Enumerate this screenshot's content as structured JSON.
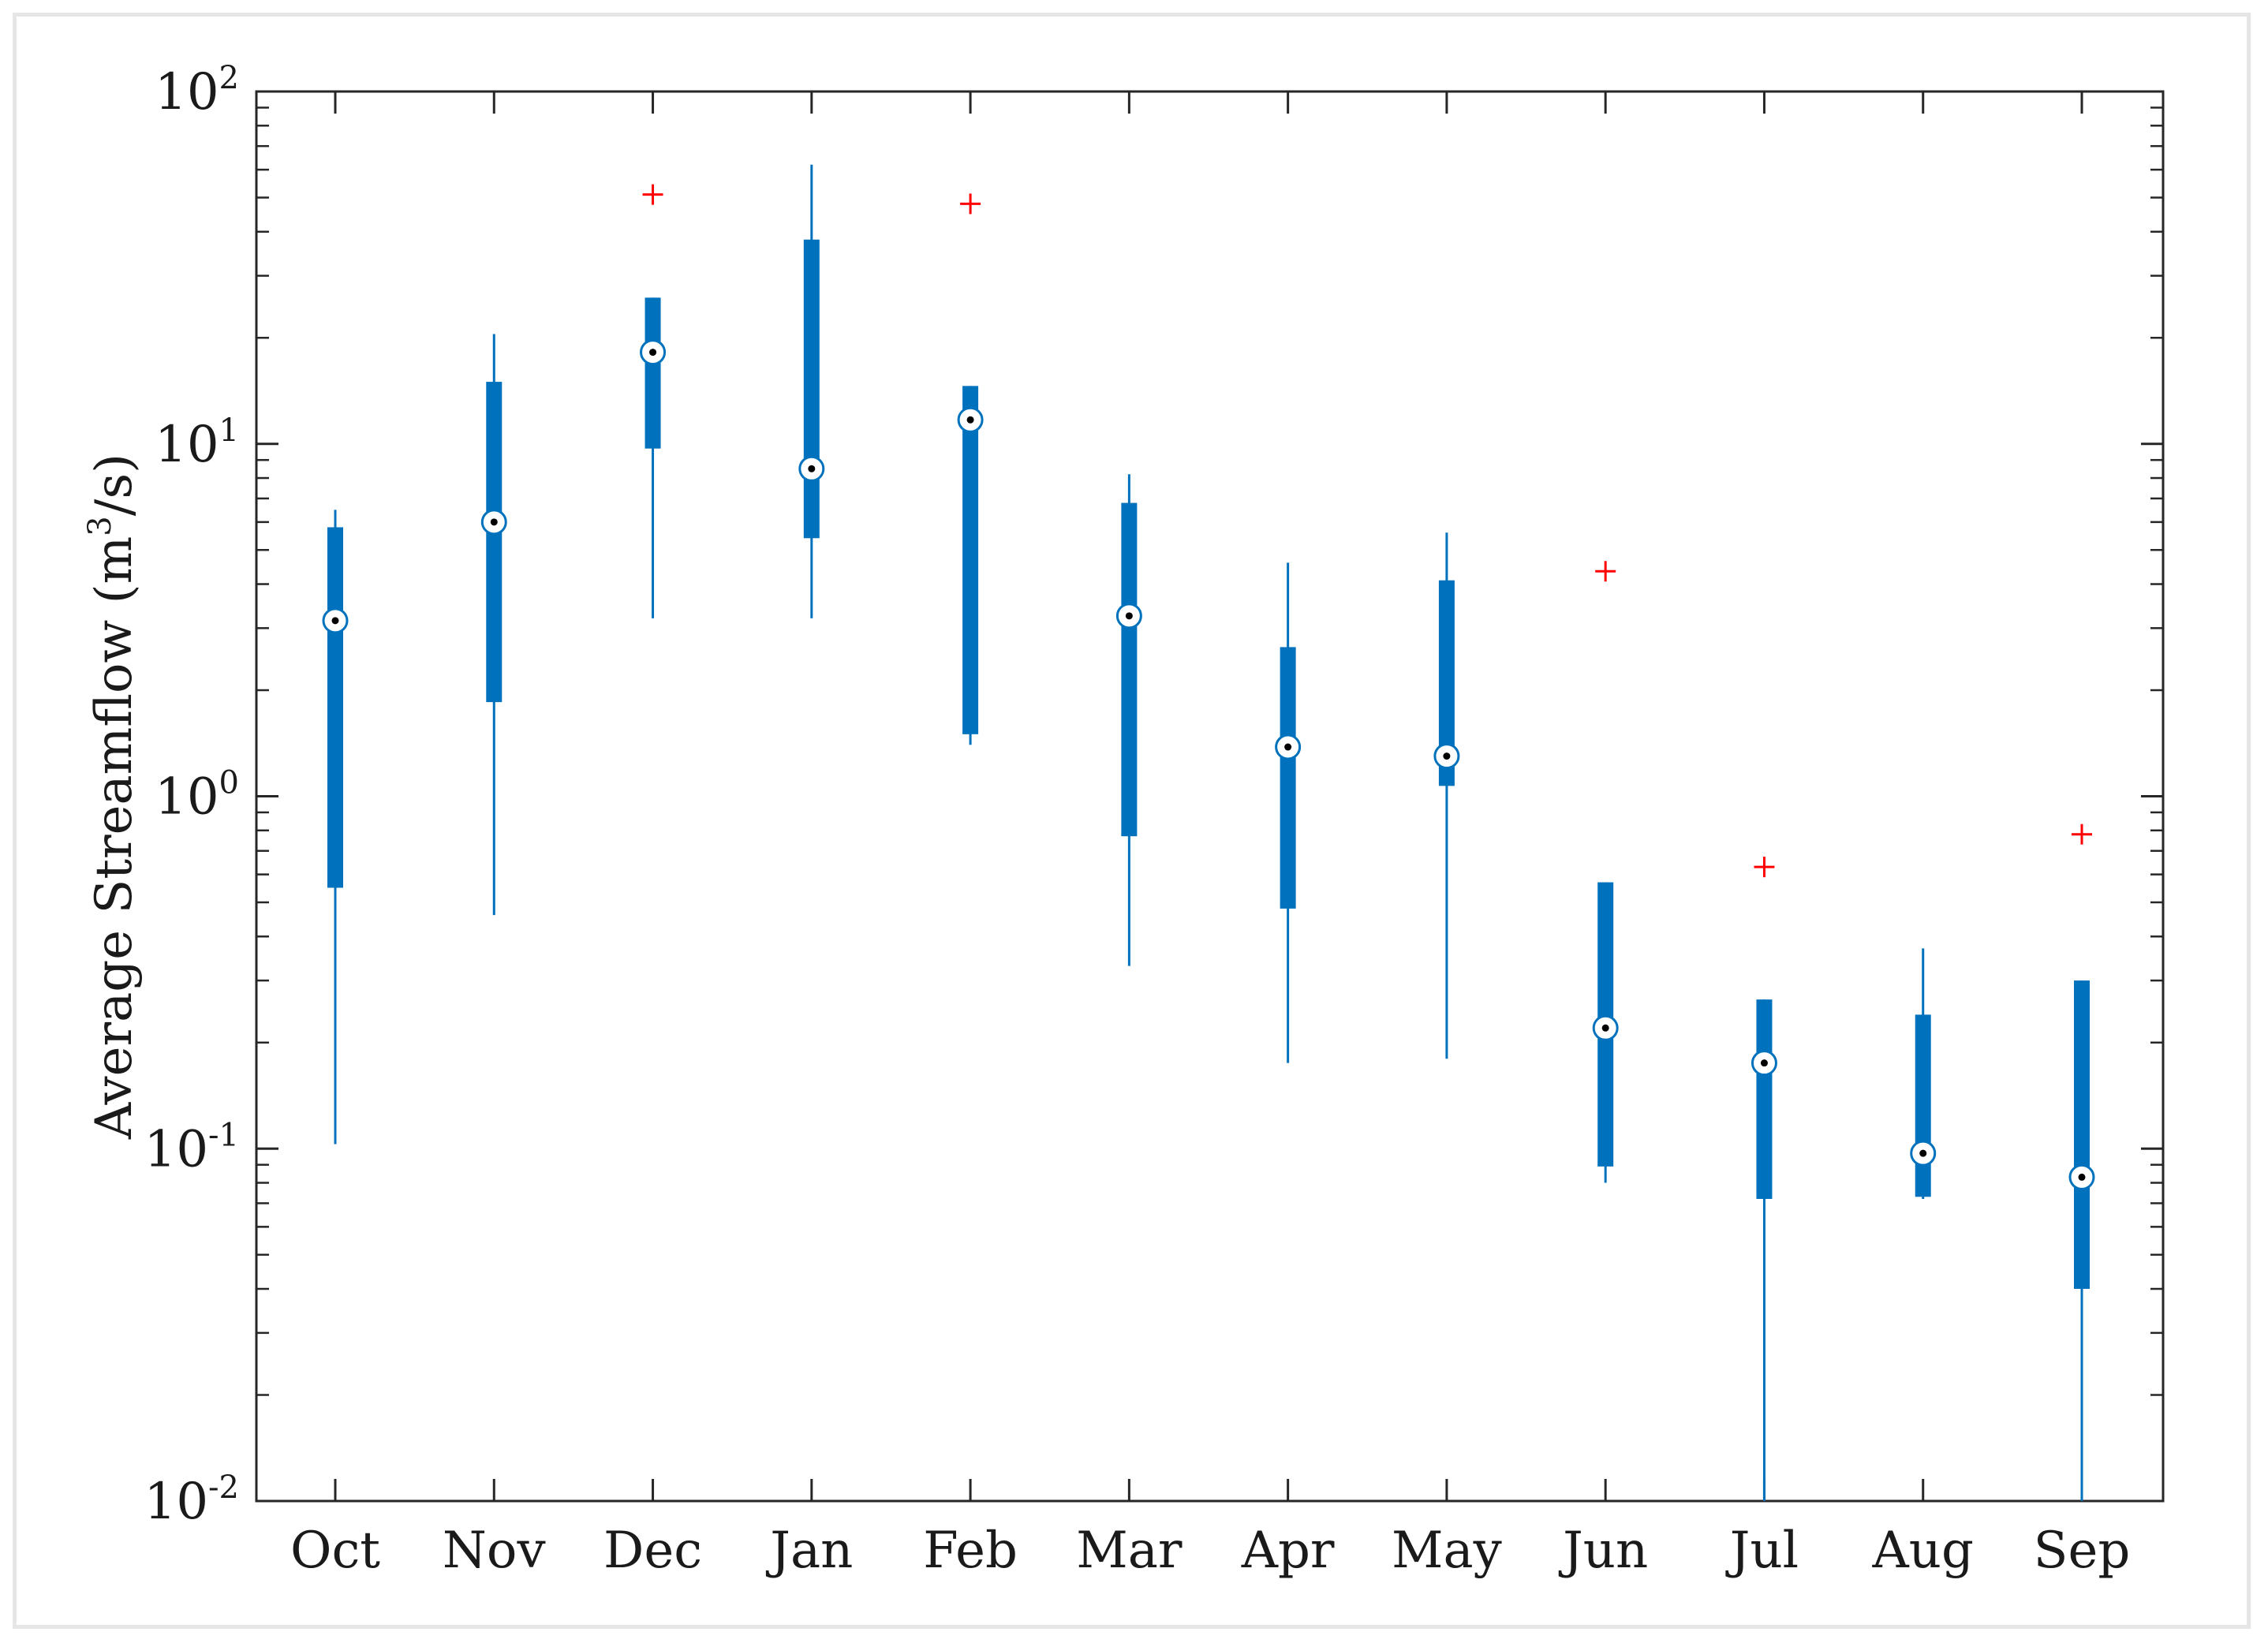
{
  "chart_data": {
    "type": "boxplot",
    "ylabel_main": "Average Streamflow (m",
    "ylabel_sup": "3",
    "ylabel_tail": "/s)",
    "xlabel": "",
    "title": "",
    "yscale": "log",
    "ylim": [
      0.01,
      100
    ],
    "y_ticks": [
      {
        "base": "10",
        "exp": "-2"
      },
      {
        "base": "10",
        "exp": "-1"
      },
      {
        "base": "10",
        "exp": "0"
      },
      {
        "base": "10",
        "exp": "1"
      },
      {
        "base": "10",
        "exp": "2"
      }
    ],
    "grid": false,
    "colors": {
      "box": "#0072bd",
      "outlier": "#ff0000",
      "median_fill": "#ffffff",
      "median_dot": "#000000",
      "axis": "#262626"
    },
    "categories": [
      "Oct",
      "Nov",
      "Dec",
      "Jan",
      "Feb",
      "Mar",
      "Apr",
      "May",
      "Jun",
      "Jul",
      "Aug",
      "Sep"
    ],
    "boxes": [
      {
        "whisker_low": 0.103,
        "q1": 0.55,
        "median": 3.15,
        "q3": 5.8,
        "whisker_high": 6.5,
        "outliers": []
      },
      {
        "whisker_low": 0.46,
        "q1": 1.85,
        "median": 6.0,
        "q3": 15.0,
        "whisker_high": 20.5,
        "outliers": []
      },
      {
        "whisker_low": 3.2,
        "q1": 9.7,
        "median": 18.2,
        "q3": 26.0,
        "whisker_high": 26.0,
        "outliers": [
          51.0
        ]
      },
      {
        "whisker_low": 3.2,
        "q1": 5.4,
        "median": 8.5,
        "q3": 38.0,
        "whisker_high": 62.0,
        "outliers": []
      },
      {
        "whisker_low": 1.4,
        "q1": 1.5,
        "median": 11.7,
        "q3": 14.6,
        "whisker_high": 14.6,
        "outliers": [
          48.0
        ]
      },
      {
        "whisker_low": 0.33,
        "q1": 0.77,
        "median": 3.25,
        "q3": 6.8,
        "whisker_high": 8.2,
        "outliers": []
      },
      {
        "whisker_low": 0.175,
        "q1": 0.48,
        "median": 1.38,
        "q3": 2.65,
        "whisker_high": 4.6,
        "outliers": []
      },
      {
        "whisker_low": 0.18,
        "q1": 1.07,
        "median": 1.3,
        "q3": 4.1,
        "whisker_high": 5.6,
        "outliers": []
      },
      {
        "whisker_low": 0.08,
        "q1": 0.089,
        "median": 0.22,
        "q3": 0.57,
        "whisker_high": 0.57,
        "outliers": [
          4.35
        ]
      },
      {
        "whisker_low": 0.01,
        "q1": 0.072,
        "median": 0.175,
        "q3": 0.265,
        "whisker_high": 0.265,
        "outliers": [
          0.63
        ]
      },
      {
        "whisker_low": 0.072,
        "q1": 0.073,
        "median": 0.097,
        "q3": 0.24,
        "whisker_high": 0.37,
        "outliers": []
      },
      {
        "whisker_low": 0.01,
        "q1": 0.04,
        "median": 0.083,
        "q3": 0.3,
        "whisker_high": 0.3,
        "outliers": [
          0.78
        ]
      }
    ]
  }
}
